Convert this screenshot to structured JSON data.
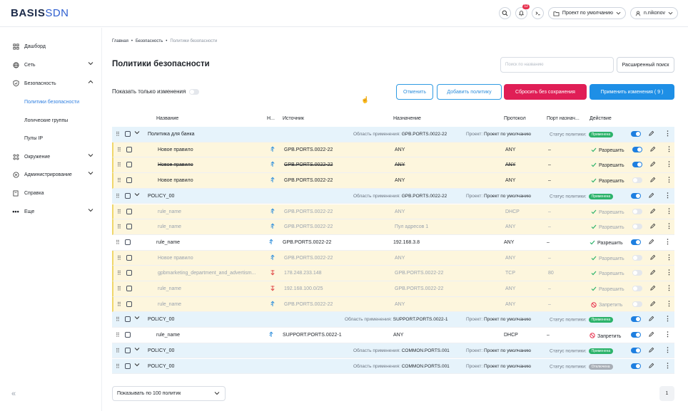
{
  "app": {
    "logo_main": "BASIS",
    "logo_sub": "SDN",
    "notifications_count": "12",
    "project_selector": "Проект по умолчанию",
    "user_name": "n.nikonov"
  },
  "sidebar": {
    "items": [
      {
        "label": "Дашборд"
      },
      {
        "label": "Сеть"
      },
      {
        "label": "Безопасность"
      },
      {
        "label": "Политики безопасности"
      },
      {
        "label": "Логические группы"
      },
      {
        "label": "Пулы IP"
      },
      {
        "label": "Окружение"
      },
      {
        "label": "Администрирование"
      },
      {
        "label": "Справка"
      },
      {
        "label": "Еще"
      }
    ],
    "collapse_glyph": "«"
  },
  "breadcrumb": {
    "home": "Главная",
    "section": "Безопасность",
    "current": "Политики безопасности",
    "sep": "•"
  },
  "page_title": "Политики безопасности",
  "search": {
    "placeholder": "Поиск по названию",
    "advanced": "Расширенный поиск"
  },
  "toolbar": {
    "only_changes": "Показать только изменения",
    "cancel": "Отменить",
    "add_policy": "Добавить политику",
    "reset": "Сбросить без сохранения",
    "apply": "Применить изменения ( 9 )"
  },
  "table": {
    "headers": {
      "name": "Название",
      "n": "Н...",
      "source": "Источник",
      "destination": "Назначение",
      "protocol": "Протокол",
      "port": "Порт назнач...",
      "action": "Действие"
    },
    "meta_labels": {
      "scope": "Область применения:",
      "project": "Проект:",
      "status": "Статус политики:"
    },
    "rows": [
      {
        "kind": "group",
        "name": "Политика для банка",
        "scope": "GPB.PORTS.0022-22",
        "project": "Проект по умолчанию",
        "status": "Применена",
        "status_on": true,
        "enabled": true
      },
      {
        "kind": "rule",
        "style": "changed",
        "name": "Новое правило",
        "src": "GPB.PORTS.0022-22",
        "dst": "ANY",
        "proto": "ANY",
        "port": "–",
        "action": "Разрешить",
        "allow": true,
        "enabled": true,
        "dir": "up"
      },
      {
        "kind": "rule",
        "style": "changed strike",
        "name": "Новое правило",
        "src": "GPB.PORTS.0022-22",
        "dst": "ANY",
        "proto": "ANY",
        "port": "–",
        "action": "Разрешить",
        "allow": true,
        "enabled": true,
        "dir": "up"
      },
      {
        "kind": "rule",
        "style": "changed",
        "name": "Новое правило",
        "src": "GPB.PORTS.0022-22",
        "dst": "ANY",
        "proto": "ANY",
        "port": "–",
        "action": "Разрешить",
        "allow": true,
        "enabled": false,
        "dir": "up"
      },
      {
        "kind": "group",
        "name": "POLICY_00",
        "scope": "GPB.PORTS.0022-22",
        "project": "Проект по умолчанию",
        "status": "Применена",
        "status_on": true,
        "enabled": true
      },
      {
        "kind": "rule",
        "style": "changed muted-txt",
        "name": "rule_name",
        "src": "GPB.PORTS.0022-22",
        "dst": "ANY",
        "proto": "DHCP",
        "port": "–",
        "action": "Разрешить",
        "allow": true,
        "enabled": false,
        "dir": "up"
      },
      {
        "kind": "rule",
        "style": "changed muted-txt",
        "name": "rule_name",
        "src": "GPB.PORTS.0022-22",
        "dst": "Пул адресов 1",
        "proto": "ANY",
        "port": "–",
        "action": "Разрешить",
        "allow": true,
        "enabled": false,
        "dir": "up"
      },
      {
        "kind": "rule",
        "style": "normal",
        "name": "rule_name",
        "src": "GPB.PORTS.0022-22",
        "dst": "192.168.3.8",
        "proto": "ANY",
        "port": "–",
        "action": "Разрешить",
        "allow": true,
        "enabled": true,
        "dir": "up"
      },
      {
        "kind": "rule",
        "style": "changed muted-txt",
        "name": "Новое правило",
        "src": "GPB.PORTS.0022-22",
        "dst": "ANY",
        "proto": "ANY",
        "port": "–",
        "action": "Разрешить",
        "allow": true,
        "enabled": false,
        "dir": "up"
      },
      {
        "kind": "rule",
        "style": "changed muted-txt",
        "name": "gpbmarketing_department_and_advertism...",
        "src": "178.248.233.148",
        "dst": "GPB.PORTS.0022-22",
        "proto": "TCP",
        "port": "80",
        "action": "Разрешить",
        "allow": true,
        "enabled": false,
        "dir": "down"
      },
      {
        "kind": "rule",
        "style": "changed muted-txt",
        "name": "rule_name",
        "src": "192.168.100.0/25",
        "dst": "GPB.PORTS.0022-22",
        "proto": "ANY",
        "port": "–",
        "action": "Разрешить",
        "allow": true,
        "enabled": false,
        "dir": "down"
      },
      {
        "kind": "rule",
        "style": "changed muted-txt",
        "name": "rule_name",
        "src": "GPB.PORTS.0022-22",
        "dst": "ANY",
        "proto": "ANY",
        "port": "–",
        "action": "Запретить",
        "allow": false,
        "enabled": false,
        "dir": "up"
      },
      {
        "kind": "group",
        "name": "POLICY_00",
        "scope": "SUPPORT.PORTS.0022-1",
        "project": "Проект по умолчанию",
        "status": "Применена",
        "status_on": true,
        "enabled": true
      },
      {
        "kind": "rule",
        "style": "normal",
        "name": "rule_name",
        "src": "SUPPORT.PORTS.0022-1",
        "dst": "ANY",
        "proto": "DHCP",
        "port": "–",
        "action": "Запретить",
        "allow": false,
        "enabled": true,
        "dir": "up"
      },
      {
        "kind": "group",
        "name": "POLICY_00",
        "scope": "COMMON.PORTS.001",
        "project": "Проект по умолчанию",
        "status": "Применена",
        "status_on": true,
        "enabled": true
      },
      {
        "kind": "group",
        "name": "POLICY_00",
        "scope": "COMMON.PORTS.001",
        "project": "Проект по умолчанию",
        "status": "Отключена",
        "status_on": false,
        "enabled": true
      }
    ]
  },
  "footer": {
    "page_size": "Показывать по 100 политик",
    "page": "1"
  },
  "colors": {
    "accent": "#1e8fe6",
    "danger": "#e01e56",
    "group_bg": "#e6f3fb",
    "changed_bg": "#fdf6dd",
    "allow": "#2db36b",
    "deny": "#e7304e"
  }
}
